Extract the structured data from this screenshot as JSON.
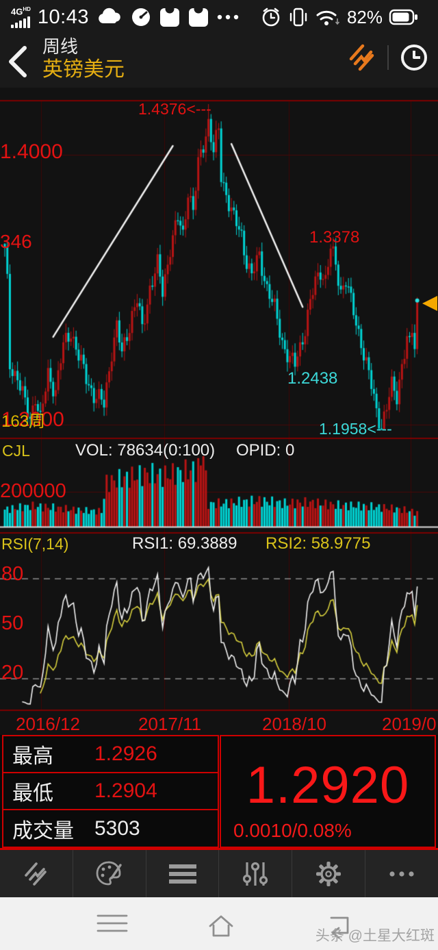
{
  "status_bar": {
    "network": "4G",
    "network_sub": "HD",
    "time": "10:43",
    "battery_percent": "82%"
  },
  "header": {
    "period": "周线",
    "symbol": "英镑美元"
  },
  "chart_data": {
    "type": "candlestick",
    "symbol": "英镑美元",
    "timeframe": "周线",
    "weeks": 163,
    "x_axis": {
      "labels": [
        "2016/12",
        "2017/11",
        "2018/10",
        "2019/0"
      ]
    },
    "price_axis": {
      "ticks": [
        {
          "label": "1.4000",
          "value": 1.4
        },
        {
          "label": "1.2000",
          "value": 1.2
        }
      ],
      "partial_tick_label": "346",
      "visible_range": [
        1.19,
        1.445
      ]
    },
    "key_points": {
      "first_open": 1.334,
      "left_edge_high": 1.3346,
      "peak_high": 1.4376,
      "peak_week": 80,
      "rebound_high": 1.3378,
      "rebound_week": 128,
      "mid_low": 1.2438,
      "mid_low_week": 114,
      "final_low": 1.1958,
      "final_low_week": 148,
      "last_close": 1.292
    },
    "price_path": [
      [
        0,
        1.328
      ],
      [
        1,
        1.305
      ],
      [
        2,
        1.245
      ],
      [
        5,
        1.235
      ],
      [
        8,
        1.215
      ],
      [
        10,
        1.205
      ],
      [
        12,
        1.222
      ],
      [
        14,
        1.202
      ],
      [
        17,
        1.238
      ],
      [
        20,
        1.225
      ],
      [
        23,
        1.258
      ],
      [
        26,
        1.27
      ],
      [
        29,
        1.25
      ],
      [
        32,
        1.235
      ],
      [
        35,
        1.222
      ],
      [
        39,
        1.215
      ],
      [
        42,
        1.255
      ],
      [
        44,
        1.272
      ],
      [
        46,
        1.252
      ],
      [
        50,
        1.282
      ],
      [
        52,
        1.292
      ],
      [
        54,
        1.27
      ],
      [
        57,
        1.302
      ],
      [
        60,
        1.318
      ],
      [
        62,
        1.298
      ],
      [
        65,
        1.332
      ],
      [
        68,
        1.352
      ],
      [
        70,
        1.34
      ],
      [
        72,
        1.375
      ],
      [
        74,
        1.358
      ],
      [
        76,
        1.392
      ],
      [
        78,
        1.408
      ],
      [
        80,
        1.425
      ],
      [
        82,
        1.402
      ],
      [
        84,
        1.418
      ],
      [
        85,
        1.384
      ],
      [
        87,
        1.372
      ],
      [
        90,
        1.352
      ],
      [
        93,
        1.34
      ],
      [
        95,
        1.322
      ],
      [
        97,
        1.31
      ],
      [
        100,
        1.325
      ],
      [
        103,
        1.302
      ],
      [
        106,
        1.285
      ],
      [
        109,
        1.262
      ],
      [
        112,
        1.248
      ],
      [
        114,
        1.244
      ],
      [
        116,
        1.258
      ],
      [
        118,
        1.272
      ],
      [
        120,
        1.29
      ],
      [
        122,
        1.305
      ],
      [
        124,
        1.315
      ],
      [
        126,
        1.308
      ],
      [
        128,
        1.33
      ],
      [
        130,
        1.318
      ],
      [
        132,
        1.3
      ],
      [
        134,
        1.308
      ],
      [
        136,
        1.29
      ],
      [
        138,
        1.275
      ],
      [
        140,
        1.262
      ],
      [
        142,
        1.245
      ],
      [
        144,
        1.228
      ],
      [
        146,
        1.21
      ],
      [
        148,
        1.2
      ],
      [
        150,
        1.212
      ],
      [
        152,
        1.228
      ],
      [
        154,
        1.222
      ],
      [
        156,
        1.245
      ],
      [
        158,
        1.262
      ],
      [
        160,
        1.268
      ],
      [
        161,
        1.256
      ],
      [
        162,
        1.292
      ]
    ],
    "volume": {
      "indicator": "CJL",
      "readout": "VOL: 78634(0:100)",
      "opid": "OPID: 0",
      "scale_tick": 200000,
      "spike_week": 78,
      "spike_value": 400000,
      "path": [
        [
          0,
          100000
        ],
        [
          10,
          120000
        ],
        [
          20,
          110000
        ],
        [
          30,
          95000
        ],
        [
          38,
          90000
        ],
        [
          40,
          250000
        ],
        [
          48,
          280000
        ],
        [
          56,
          300000
        ],
        [
          62,
          290000
        ],
        [
          70,
          310000
        ],
        [
          76,
          330000
        ],
        [
          78,
          400000
        ],
        [
          80,
          130000
        ],
        [
          90,
          140000
        ],
        [
          100,
          150000
        ],
        [
          110,
          135000
        ],
        [
          120,
          140000
        ],
        [
          130,
          125000
        ],
        [
          140,
          120000
        ],
        [
          150,
          110000
        ],
        [
          156,
          100000
        ],
        [
          160,
          90000
        ],
        [
          162,
          78634
        ]
      ]
    },
    "rsi": {
      "indicator": "RSI(7,14)",
      "rsi1_label": "RSI1: 69.3889",
      "rsi2_label": "RSI2: 58.9775",
      "rsi1": 69.3889,
      "rsi2": 58.9775,
      "levels": [
        80,
        50,
        20
      ]
    },
    "trendlines": [
      {
        "from": [
          19,
          1.265
        ],
        "to": [
          66,
          1.4066
        ]
      },
      {
        "from": [
          89,
          1.4081
        ],
        "to": [
          117,
          1.2872
        ]
      }
    ],
    "labels": {
      "tick_top": "1.4000",
      "tick_partial": "346",
      "tick_bottom": "1.2000",
      "weeks_badge": "163周",
      "peak_callout": "1.4376<---",
      "rebound": "1.3378",
      "mid_low": "1.2438",
      "final_low_callout": "1.1958<---",
      "vol_scale": "200000",
      "rsi_80": "80",
      "rsi_50": "50",
      "rsi_20": "20"
    }
  },
  "info_panel": {
    "rows": [
      {
        "label": "最高",
        "value": "1.2926"
      },
      {
        "label": "最低",
        "value": "1.2904"
      },
      {
        "label": "成交量",
        "value": "5303"
      }
    ],
    "last_price": "1.2920",
    "change": "0.0010/0.08%"
  },
  "toolbar": {
    "icons": [
      "trend-lines",
      "palette",
      "list-menu",
      "sliders",
      "gear",
      "ellipsis"
    ]
  },
  "nav_bar": {
    "icons": [
      "menu",
      "home",
      "back"
    ]
  },
  "watermark": {
    "text": "头条 @土星大红斑"
  },
  "colors": {
    "accent_red": "#e31212",
    "candle_up": "#b81414",
    "candle_down": "#00d4d4",
    "rsi1_line": "#f2f2f2",
    "rsi2_line": "#d6cf3e",
    "gold": "#e5ae12",
    "marker_yellow": "#f5a800",
    "border_red": "#cf0000"
  }
}
